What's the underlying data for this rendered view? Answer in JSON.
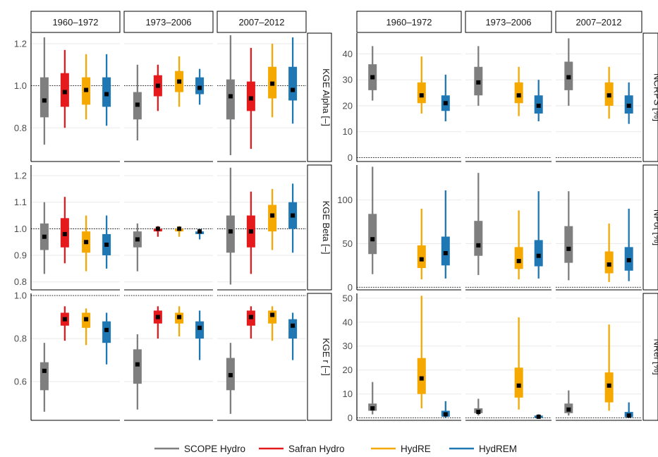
{
  "colors": {
    "SCOPE Hydro": "#7f7f7f",
    "Safran Hydro": "#e41a1c",
    "HydRE": "#f5a800",
    "HydREM": "#1f78b4"
  },
  "legend": [
    "SCOPE Hydro",
    "Safran Hydro",
    "HydRE",
    "HydREM"
  ],
  "chart_data": [
    {
      "type": "boxplot",
      "periods": [
        "1960–1972",
        "1973–2006",
        "2007–2012"
      ],
      "series_names": [
        "SCOPE Hydro",
        "Safran Hydro",
        "HydRE",
        "HydREM"
      ],
      "rows": [
        {
          "label": "KGE Alpha [–]",
          "ylim": [
            0.64,
            1.25
          ],
          "yticks": [
            0.8,
            1.0,
            1.2
          ],
          "ticklabels": [
            "0.8",
            "1.0",
            "1.2"
          ],
          "refline": 1.0,
          "panels": [
            [
              [
                0.72,
                0.85,
                0.93,
                1.04,
                1.23
              ],
              [
                0.8,
                0.9,
                0.97,
                1.06,
                1.17
              ],
              [
                0.84,
                0.91,
                0.98,
                1.04,
                1.15
              ],
              [
                0.81,
                0.9,
                0.96,
                1.04,
                1.15
              ]
            ],
            [
              [
                0.74,
                0.84,
                0.91,
                0.97,
                1.1
              ],
              [
                0.88,
                0.95,
                1.0,
                1.05,
                1.1
              ],
              [
                0.9,
                0.97,
                1.02,
                1.07,
                1.14
              ],
              [
                0.91,
                0.96,
                0.99,
                1.04,
                1.08
              ]
            ],
            [
              [
                0.67,
                0.84,
                0.95,
                1.03,
                1.24
              ],
              [
                0.7,
                0.88,
                0.94,
                1.02,
                1.18
              ],
              [
                0.85,
                0.94,
                1.01,
                1.09,
                1.2
              ],
              [
                0.82,
                0.93,
                0.98,
                1.09,
                1.23
              ]
            ]
          ]
        },
        {
          "label": "KGE Beta [–]",
          "ylim": [
            0.77,
            1.24
          ],
          "yticks": [
            0.8,
            0.9,
            1.0,
            1.1,
            1.2
          ],
          "ticklabels": [
            "0.8",
            "0.9",
            "1.0",
            "1.1",
            "1.2"
          ],
          "refline": 1.0,
          "panels": [
            [
              [
                0.83,
                0.92,
                0.97,
                1.02,
                1.1
              ],
              [
                0.87,
                0.93,
                0.98,
                1.04,
                1.12
              ],
              [
                0.84,
                0.91,
                0.95,
                0.99,
                1.05
              ],
              [
                0.85,
                0.9,
                0.94,
                0.98,
                1.05
              ]
            ],
            [
              [
                0.84,
                0.93,
                0.96,
                0.99,
                1.02
              ],
              [
                0.97,
                0.99,
                1.0,
                1.0,
                1.01
              ],
              [
                0.97,
                0.99,
                1.0,
                1.0,
                1.01
              ],
              [
                0.96,
                0.98,
                0.99,
                0.99,
                1.0
              ]
            ],
            [
              [
                0.79,
                0.91,
                0.99,
                1.05,
                1.23
              ],
              [
                0.83,
                0.93,
                0.99,
                1.05,
                1.14
              ],
              [
                0.92,
                0.99,
                1.05,
                1.09,
                1.15
              ],
              [
                0.91,
                1.0,
                1.05,
                1.1,
                1.17
              ]
            ]
          ]
        },
        {
          "label": "KGE r [–]",
          "ylim": [
            0.42,
            1.01
          ],
          "yticks": [
            0.6,
            0.8,
            1.0
          ],
          "ticklabels": [
            "0.6",
            "0.8",
            "1.0"
          ],
          "refline": 1.0,
          "panels": [
            [
              [
                0.46,
                0.56,
                0.65,
                0.69,
                0.78
              ],
              [
                0.79,
                0.86,
                0.89,
                0.92,
                0.95
              ],
              [
                0.77,
                0.85,
                0.89,
                0.92,
                0.94
              ],
              [
                0.68,
                0.78,
                0.84,
                0.88,
                0.92
              ]
            ],
            [
              [
                0.47,
                0.59,
                0.68,
                0.75,
                0.82
              ],
              [
                0.8,
                0.87,
                0.9,
                0.93,
                0.95
              ],
              [
                0.81,
                0.87,
                0.9,
                0.92,
                0.95
              ],
              [
                0.7,
                0.8,
                0.85,
                0.88,
                0.93
              ]
            ],
            [
              [
                0.45,
                0.56,
                0.63,
                0.71,
                0.78
              ],
              [
                0.8,
                0.86,
                0.9,
                0.93,
                0.95
              ],
              [
                0.79,
                0.87,
                0.91,
                0.93,
                0.95
              ],
              [
                0.7,
                0.8,
                0.86,
                0.89,
                0.92
              ]
            ]
          ]
        },
        {
          "label": "NCRPS [%]",
          "ylim": [
            -1.5,
            48
          ],
          "yticks": [
            0,
            10,
            20,
            30,
            40
          ],
          "ticklabels": [
            "0",
            "10",
            "20",
            "30",
            "40"
          ],
          "refline": 0,
          "panels": [
            [
              [
                22,
                26,
                31,
                36,
                43
              ],
              null,
              [
                17,
                21,
                24,
                29,
                39
              ],
              [
                14,
                18,
                21,
                24,
                32
              ]
            ],
            [
              [
                20,
                24,
                29,
                35,
                43
              ],
              null,
              [
                16,
                21,
                24,
                29,
                35
              ],
              [
                14,
                17,
                20,
                24,
                30
              ]
            ],
            [
              [
                20,
                26,
                31,
                37,
                46
              ],
              null,
              [
                15,
                20,
                24,
                29,
                35
              ],
              [
                13,
                17,
                20,
                24,
                29
              ]
            ]
          ]
        },
        {
          "label": "NPot [%]",
          "ylim": [
            -3,
            140
          ],
          "yticks": [
            0,
            50,
            100
          ],
          "ticklabels": [
            "0",
            "50",
            "100"
          ],
          "refline": 0,
          "panels": [
            [
              [
                15,
                38,
                55,
                84,
                138
              ],
              null,
              [
                9,
                22,
                32,
                48,
                90
              ],
              [
                10,
                25,
                39,
                58,
                111
              ]
            ],
            [
              [
                14,
                36,
                48,
                76,
                131
              ],
              null,
              [
                9,
                21,
                30,
                46,
                88
              ],
              [
                10,
                24,
                36,
                54,
                110
              ]
            ],
            [
              [
                8,
                28,
                44,
                70,
                110
              ],
              null,
              [
                6,
                16,
                26,
                41,
                73
              ],
              [
                7,
                19,
                31,
                46,
                90
              ]
            ]
          ]
        },
        {
          "label": "NRel [%]",
          "ylim": [
            -1,
            52
          ],
          "yticks": [
            0,
            10,
            20,
            30,
            40,
            50
          ],
          "ticklabels": [
            "0",
            "10",
            "20",
            "30",
            "40",
            "50"
          ],
          "refline": 0,
          "panels": [
            [
              [
                1.5,
                3,
                4,
                6,
                15
              ],
              null,
              [
                4,
                10,
                16.5,
                25,
                51
              ],
              [
                0,
                0.5,
                1.5,
                3,
                7
              ]
            ],
            [
              [
                1,
                2,
                2.5,
                4,
                8
              ],
              null,
              [
                3.5,
                8.5,
                13.5,
                21,
                42
              ],
              [
                0,
                0,
                0.5,
                1,
                1.5
              ]
            ],
            [
              [
                1,
                2,
                3.5,
                6,
                11.5
              ],
              null,
              [
                3,
                6.5,
                13.5,
                19,
                39
              ],
              [
                0,
                0.3,
                1,
                2.5,
                6.5
              ]
            ]
          ]
        }
      ]
    }
  ]
}
